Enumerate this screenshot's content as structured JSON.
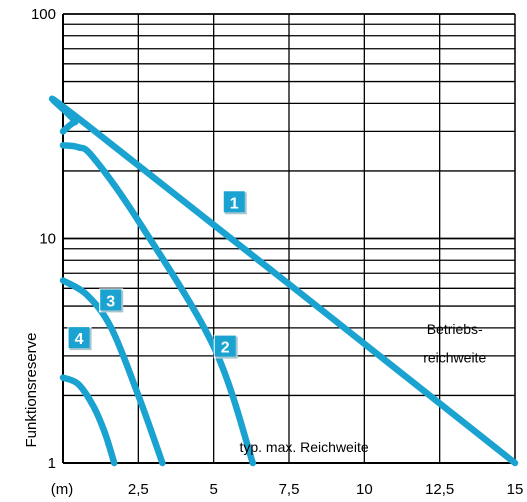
{
  "chart_data": {
    "type": "line",
    "xlabel": "(m)",
    "ylabel": "Funktionsreserve",
    "x_scale": "linear",
    "y_scale": "log",
    "xlim": [
      0,
      15
    ],
    "ylim": [
      1,
      100
    ],
    "x_ticks": [
      {
        "value": 2.5,
        "label": "2,5"
      },
      {
        "value": 5,
        "label": "5"
      },
      {
        "value": 7.5,
        "label": "7,5"
      },
      {
        "value": 10,
        "label": "10"
      },
      {
        "value": 12.5,
        "label": "12,5"
      },
      {
        "value": 15,
        "label": "15"
      }
    ],
    "y_ticks": [
      {
        "value": 1,
        "label": "1"
      },
      {
        "value": 10,
        "label": "10"
      },
      {
        "value": 100,
        "label": "100"
      }
    ],
    "grid": true,
    "line_color": "#1aa3d1",
    "badge_color": "#1aa3d1",
    "series": [
      {
        "name": "1",
        "points": [
          [
            0,
            30
          ],
          [
            0.4,
            33
          ],
          [
            0.8,
            32
          ],
          [
            15,
            1.0
          ]
        ],
        "label_at": [
          5.7,
          14.5
        ]
      },
      {
        "name": "2",
        "points": [
          [
            0,
            26
          ],
          [
            0.5,
            25.5
          ],
          [
            1.0,
            23
          ],
          [
            2.5,
            12
          ],
          [
            5,
            3.3
          ],
          [
            6.3,
            1.0
          ]
        ],
        "label_at": [
          5.4,
          3.3
        ]
      },
      {
        "name": "3",
        "points": [
          [
            0,
            6.5
          ],
          [
            0.8,
            5.6
          ],
          [
            1.6,
            4.0
          ],
          [
            2.5,
            2.0
          ],
          [
            3.3,
            1.0
          ]
        ],
        "label_at": [
          1.6,
          5.3
        ]
      },
      {
        "name": "4",
        "points": [
          [
            0,
            2.4
          ],
          [
            0.5,
            2.25
          ],
          [
            1.0,
            1.8
          ],
          [
            1.4,
            1.35
          ],
          [
            1.7,
            1.0
          ]
        ],
        "label_at": [
          0.55,
          3.6
        ]
      }
    ],
    "annotations": [
      {
        "text": "Betriebs-",
        "x": 13.0,
        "y": 3.75
      },
      {
        "text": "reichweite",
        "x": 13.0,
        "y": 2.8
      },
      {
        "text": "typ. max. Reichweite",
        "x": 8.0,
        "y": 1.12
      }
    ]
  }
}
